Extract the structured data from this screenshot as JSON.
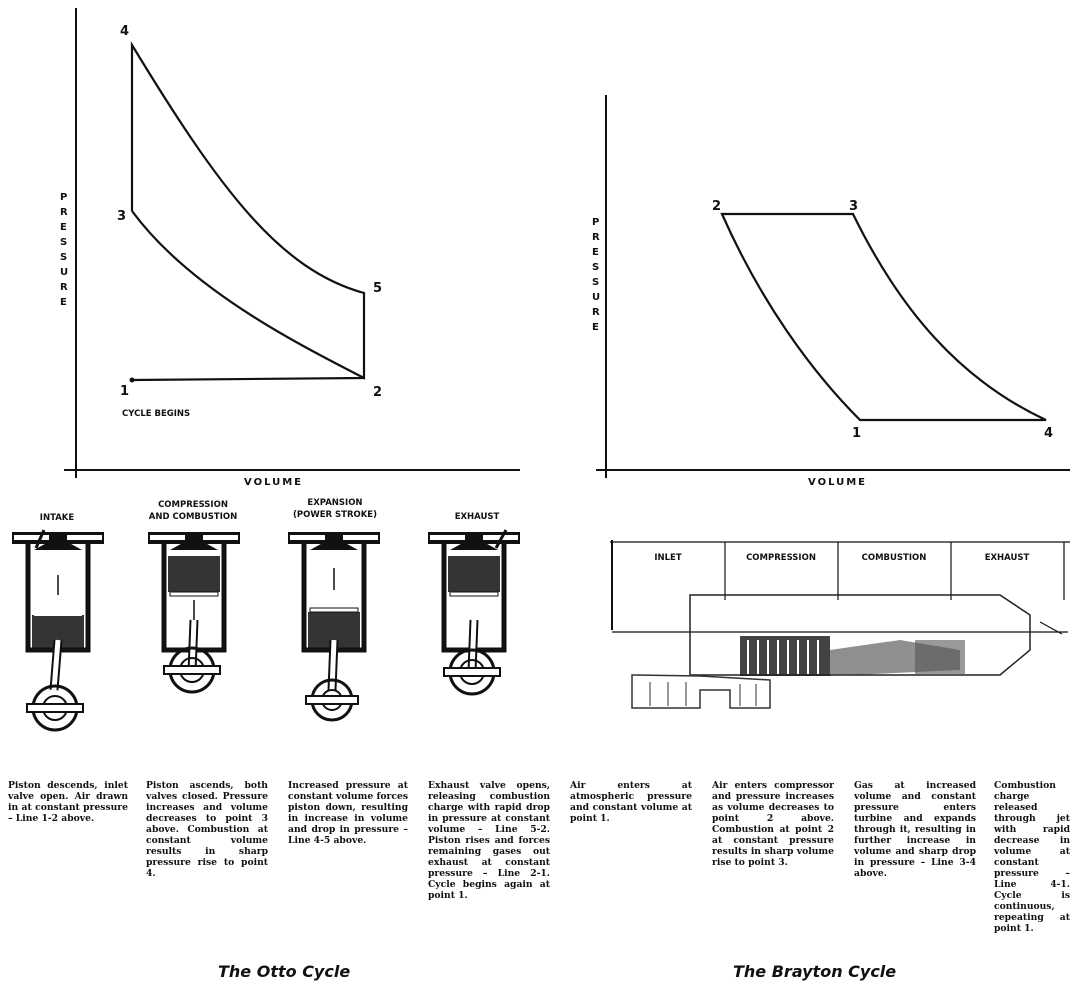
{
  "otto": {
    "axis_y": "PRESSURE",
    "axis_x": "VOLUME",
    "points": [
      "1",
      "2",
      "3",
      "4",
      "5"
    ],
    "cycle_begins": "CYCLE BEGINS",
    "stages": [
      {
        "lines": [
          "INTAKE"
        ]
      },
      {
        "lines": [
          "COMPRESSION",
          "AND COMBUSTION"
        ]
      },
      {
        "lines": [
          "EXPANSION",
          "(POWER STROKE)"
        ]
      },
      {
        "lines": [
          "EXHAUST"
        ]
      }
    ],
    "descriptions": [
      "Piston descends, inlet valve open. Air drawn in at constant pressure – Line 1-2 above.",
      "Piston ascends, both valves closed. Pressure increases and volume decreases to point 3 above. Combustion at constant volume results in sharp pressure rise to point 4.",
      "Increased pressure at constant volume forces piston down, resulting in increase in volume and drop in pressure – Line 4-5 above.",
      "Exhaust valve opens, releasing combustion charge with rapid drop in pressure at constant volume – Line 5-2. Piston rises and forces remaining gases out exhaust at constant pressure – Line 2-1. Cycle begins again at point 1."
    ],
    "caption": "The Otto Cycle"
  },
  "brayton": {
    "axis_y": "PRESSURE",
    "axis_x": "VOLUME",
    "points": [
      "1",
      "2",
      "3",
      "4"
    ],
    "stages": [
      "INLET",
      "COMPRESSION",
      "COMBUSTION",
      "EXHAUST"
    ],
    "descriptions": [
      "Air enters at atmospheric pressure and constant volume at point 1.",
      "Air enters compressor and pressure increases as volume decreases to point 2 above. Combustion at point 2 at constant pressure results in sharp volume rise to point 3.",
      "Gas at increased volume and constant pressure enters turbine and expands through it, resulting in further increase in volume and sharp drop in pressure – Line 3-4 above.",
      "Combustion charge released through jet with rapid decrease in volume at constant pressure – Line 4-1. Cycle is continuous, repeating at point 1."
    ],
    "caption": "The Brayton Cycle"
  }
}
